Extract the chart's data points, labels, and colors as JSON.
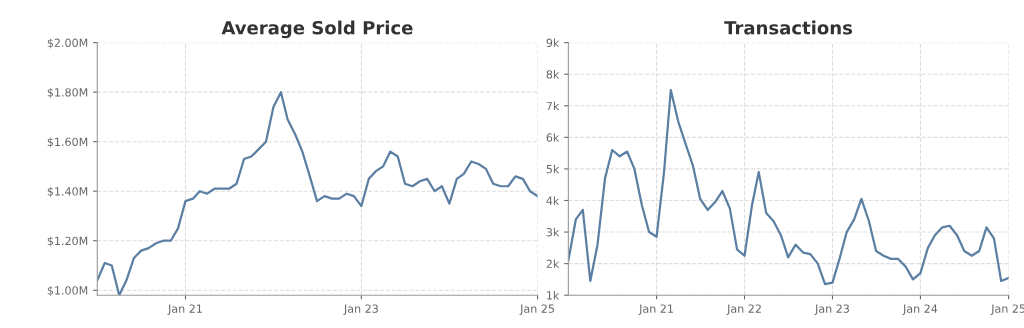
{
  "chart_data": [
    {
      "type": "line",
      "title": "Average Sold Price",
      "grid": true,
      "marker": "none",
      "line_style": "solid",
      "x": [
        "2020-01",
        "2020-02",
        "2020-03",
        "2020-04",
        "2020-05",
        "2020-06",
        "2020-07",
        "2020-08",
        "2020-09",
        "2020-10",
        "2020-11",
        "2020-12",
        "2021-01",
        "2021-02",
        "2021-03",
        "2021-04",
        "2021-05",
        "2021-06",
        "2021-07",
        "2021-08",
        "2021-09",
        "2021-10",
        "2021-11",
        "2021-12",
        "2022-01",
        "2022-02",
        "2022-03",
        "2022-04",
        "2022-05",
        "2022-06",
        "2022-07",
        "2022-08",
        "2022-09",
        "2022-10",
        "2022-11",
        "2022-12",
        "2023-01",
        "2023-02",
        "2023-03",
        "2023-04",
        "2023-05",
        "2023-06",
        "2023-07",
        "2023-08",
        "2023-09",
        "2023-10",
        "2023-11",
        "2023-12",
        "2024-01",
        "2024-02",
        "2024-03",
        "2024-04",
        "2024-05",
        "2024-06",
        "2024-07",
        "2024-08",
        "2024-09",
        "2024-10",
        "2024-11",
        "2024-12",
        "2025-01"
      ],
      "series": [
        {
          "color": "#5b7fa3",
          "values": [
            1.04,
            1.11,
            1.1,
            0.98,
            1.04,
            1.13,
            1.16,
            1.17,
            1.19,
            1.2,
            1.2,
            1.25,
            1.36,
            1.37,
            1.4,
            1.39,
            1.41,
            1.41,
            1.41,
            1.43,
            1.53,
            1.54,
            1.57,
            1.6,
            1.74,
            1.8,
            1.69,
            1.63,
            1.56,
            1.46,
            1.36,
            1.38,
            1.37,
            1.37,
            1.39,
            1.38,
            1.34,
            1.45,
            1.48,
            1.5,
            1.56,
            1.54,
            1.43,
            1.42,
            1.44,
            1.45,
            1.4,
            1.42,
            1.35,
            1.45,
            1.47,
            1.52,
            1.51,
            1.49,
            1.43,
            1.42,
            1.42,
            1.46,
            1.45,
            1.4,
            1.38
          ]
        }
      ],
      "xlim": [
        "2020-01",
        "2025-01"
      ],
      "ylim": [
        0.98,
        2.0
      ],
      "xticks": [
        {
          "value": "2021-01",
          "label": "Jan 21"
        },
        {
          "value": "2023-01",
          "label": "Jan 23"
        },
        {
          "value": "2025-01",
          "label": "Jan 25"
        }
      ],
      "yticks": [
        {
          "value": 1.0,
          "label": "$1.00M"
        },
        {
          "value": 1.2,
          "label": "$1.20M"
        },
        {
          "value": 1.4,
          "label": "$1.40M"
        },
        {
          "value": 1.6,
          "label": "$1.60M"
        },
        {
          "value": 1.8,
          "label": "$1.80M"
        },
        {
          "value": 2.0,
          "label": "$2.00M"
        }
      ]
    },
    {
      "type": "line",
      "title": "Transactions",
      "grid": true,
      "marker": "none",
      "line_style": "solid",
      "x": [
        "2020-01",
        "2020-02",
        "2020-03",
        "2020-04",
        "2020-05",
        "2020-06",
        "2020-07",
        "2020-08",
        "2020-09",
        "2020-10",
        "2020-11",
        "2020-12",
        "2021-01",
        "2021-02",
        "2021-03",
        "2021-04",
        "2021-05",
        "2021-06",
        "2021-07",
        "2021-08",
        "2021-09",
        "2021-10",
        "2021-11",
        "2021-12",
        "2022-01",
        "2022-02",
        "2022-03",
        "2022-04",
        "2022-05",
        "2022-06",
        "2022-07",
        "2022-08",
        "2022-09",
        "2022-10",
        "2022-11",
        "2022-12",
        "2023-01",
        "2023-02",
        "2023-03",
        "2023-04",
        "2023-05",
        "2023-06",
        "2023-07",
        "2023-08",
        "2023-09",
        "2023-10",
        "2023-11",
        "2023-12",
        "2024-01",
        "2024-02",
        "2024-03",
        "2024-04",
        "2024-05",
        "2024-06",
        "2024-07",
        "2024-08",
        "2024-09",
        "2024-10",
        "2024-11",
        "2024-12",
        "2025-01"
      ],
      "series": [
        {
          "color": "#5b7fa3",
          "values": [
            2.1,
            3.4,
            3.7,
            1.45,
            2.6,
            4.7,
            5.6,
            5.4,
            5.55,
            5.0,
            3.85,
            3.0,
            2.85,
            4.9,
            7.5,
            6.5,
            5.8,
            5.1,
            4.05,
            3.7,
            3.95,
            4.3,
            3.75,
            2.45,
            2.25,
            3.85,
            4.9,
            3.6,
            3.35,
            2.9,
            2.2,
            2.6,
            2.35,
            2.3,
            2.0,
            1.35,
            1.4,
            2.2,
            3.0,
            3.4,
            4.05,
            3.35,
            2.4,
            2.25,
            2.15,
            2.15,
            1.9,
            1.5,
            1.7,
            2.5,
            2.9,
            3.15,
            3.2,
            2.9,
            2.4,
            2.25,
            2.4,
            3.15,
            2.8,
            1.45,
            1.55
          ]
        }
      ],
      "xlim": [
        "2020-01",
        "2025-01"
      ],
      "ylim": [
        1,
        9
      ],
      "xticks": [
        {
          "value": "2021-01",
          "label": "Jan 21"
        },
        {
          "value": "2022-01",
          "label": "Jan 22"
        },
        {
          "value": "2023-01",
          "label": "Jan 23"
        },
        {
          "value": "2024-01",
          "label": "Jan 24"
        },
        {
          "value": "2025-01",
          "label": "Jan 25"
        }
      ],
      "yticks": [
        {
          "value": 1,
          "label": "1k"
        },
        {
          "value": 2,
          "label": "2k"
        },
        {
          "value": 3,
          "label": "3k"
        },
        {
          "value": 4,
          "label": "4k"
        },
        {
          "value": 5,
          "label": "5k"
        },
        {
          "value": 6,
          "label": "6k"
        },
        {
          "value": 7,
          "label": "7k"
        },
        {
          "value": 8,
          "label": "8k"
        },
        {
          "value": 9,
          "label": "9k"
        }
      ]
    }
  ]
}
